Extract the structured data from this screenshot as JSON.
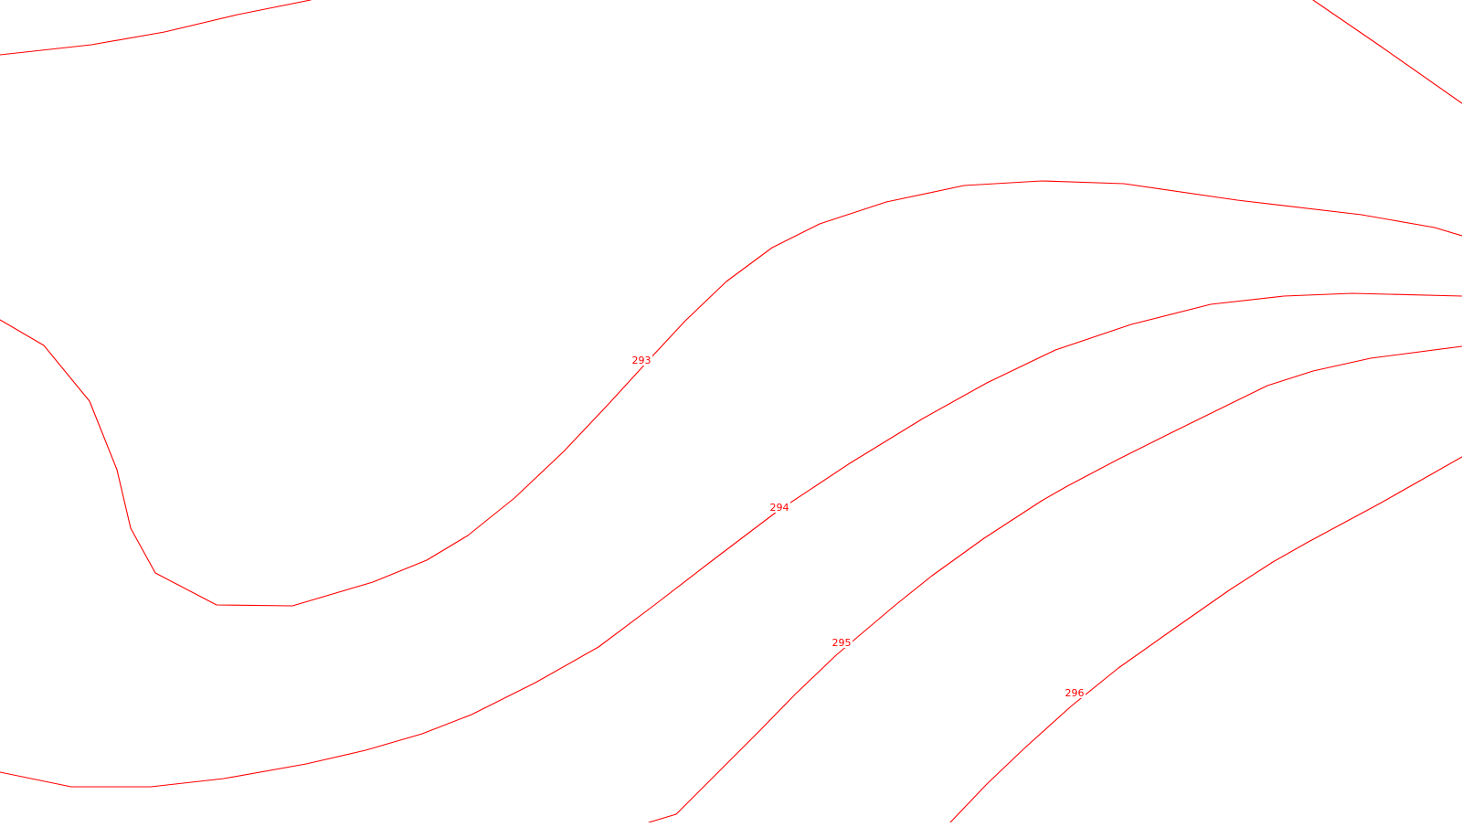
{
  "map": {
    "background_color": "#ffffff",
    "contour_color": "#ff0000",
    "contours": [
      {
        "id": "contour-top-left",
        "label": ""
      },
      {
        "id": "contour-top-right",
        "label": ""
      },
      {
        "id": "contour-293",
        "label": "293"
      },
      {
        "id": "contour-294",
        "label": "294"
      },
      {
        "id": "contour-295",
        "label": "295"
      },
      {
        "id": "contour-296",
        "label": "296"
      }
    ]
  }
}
